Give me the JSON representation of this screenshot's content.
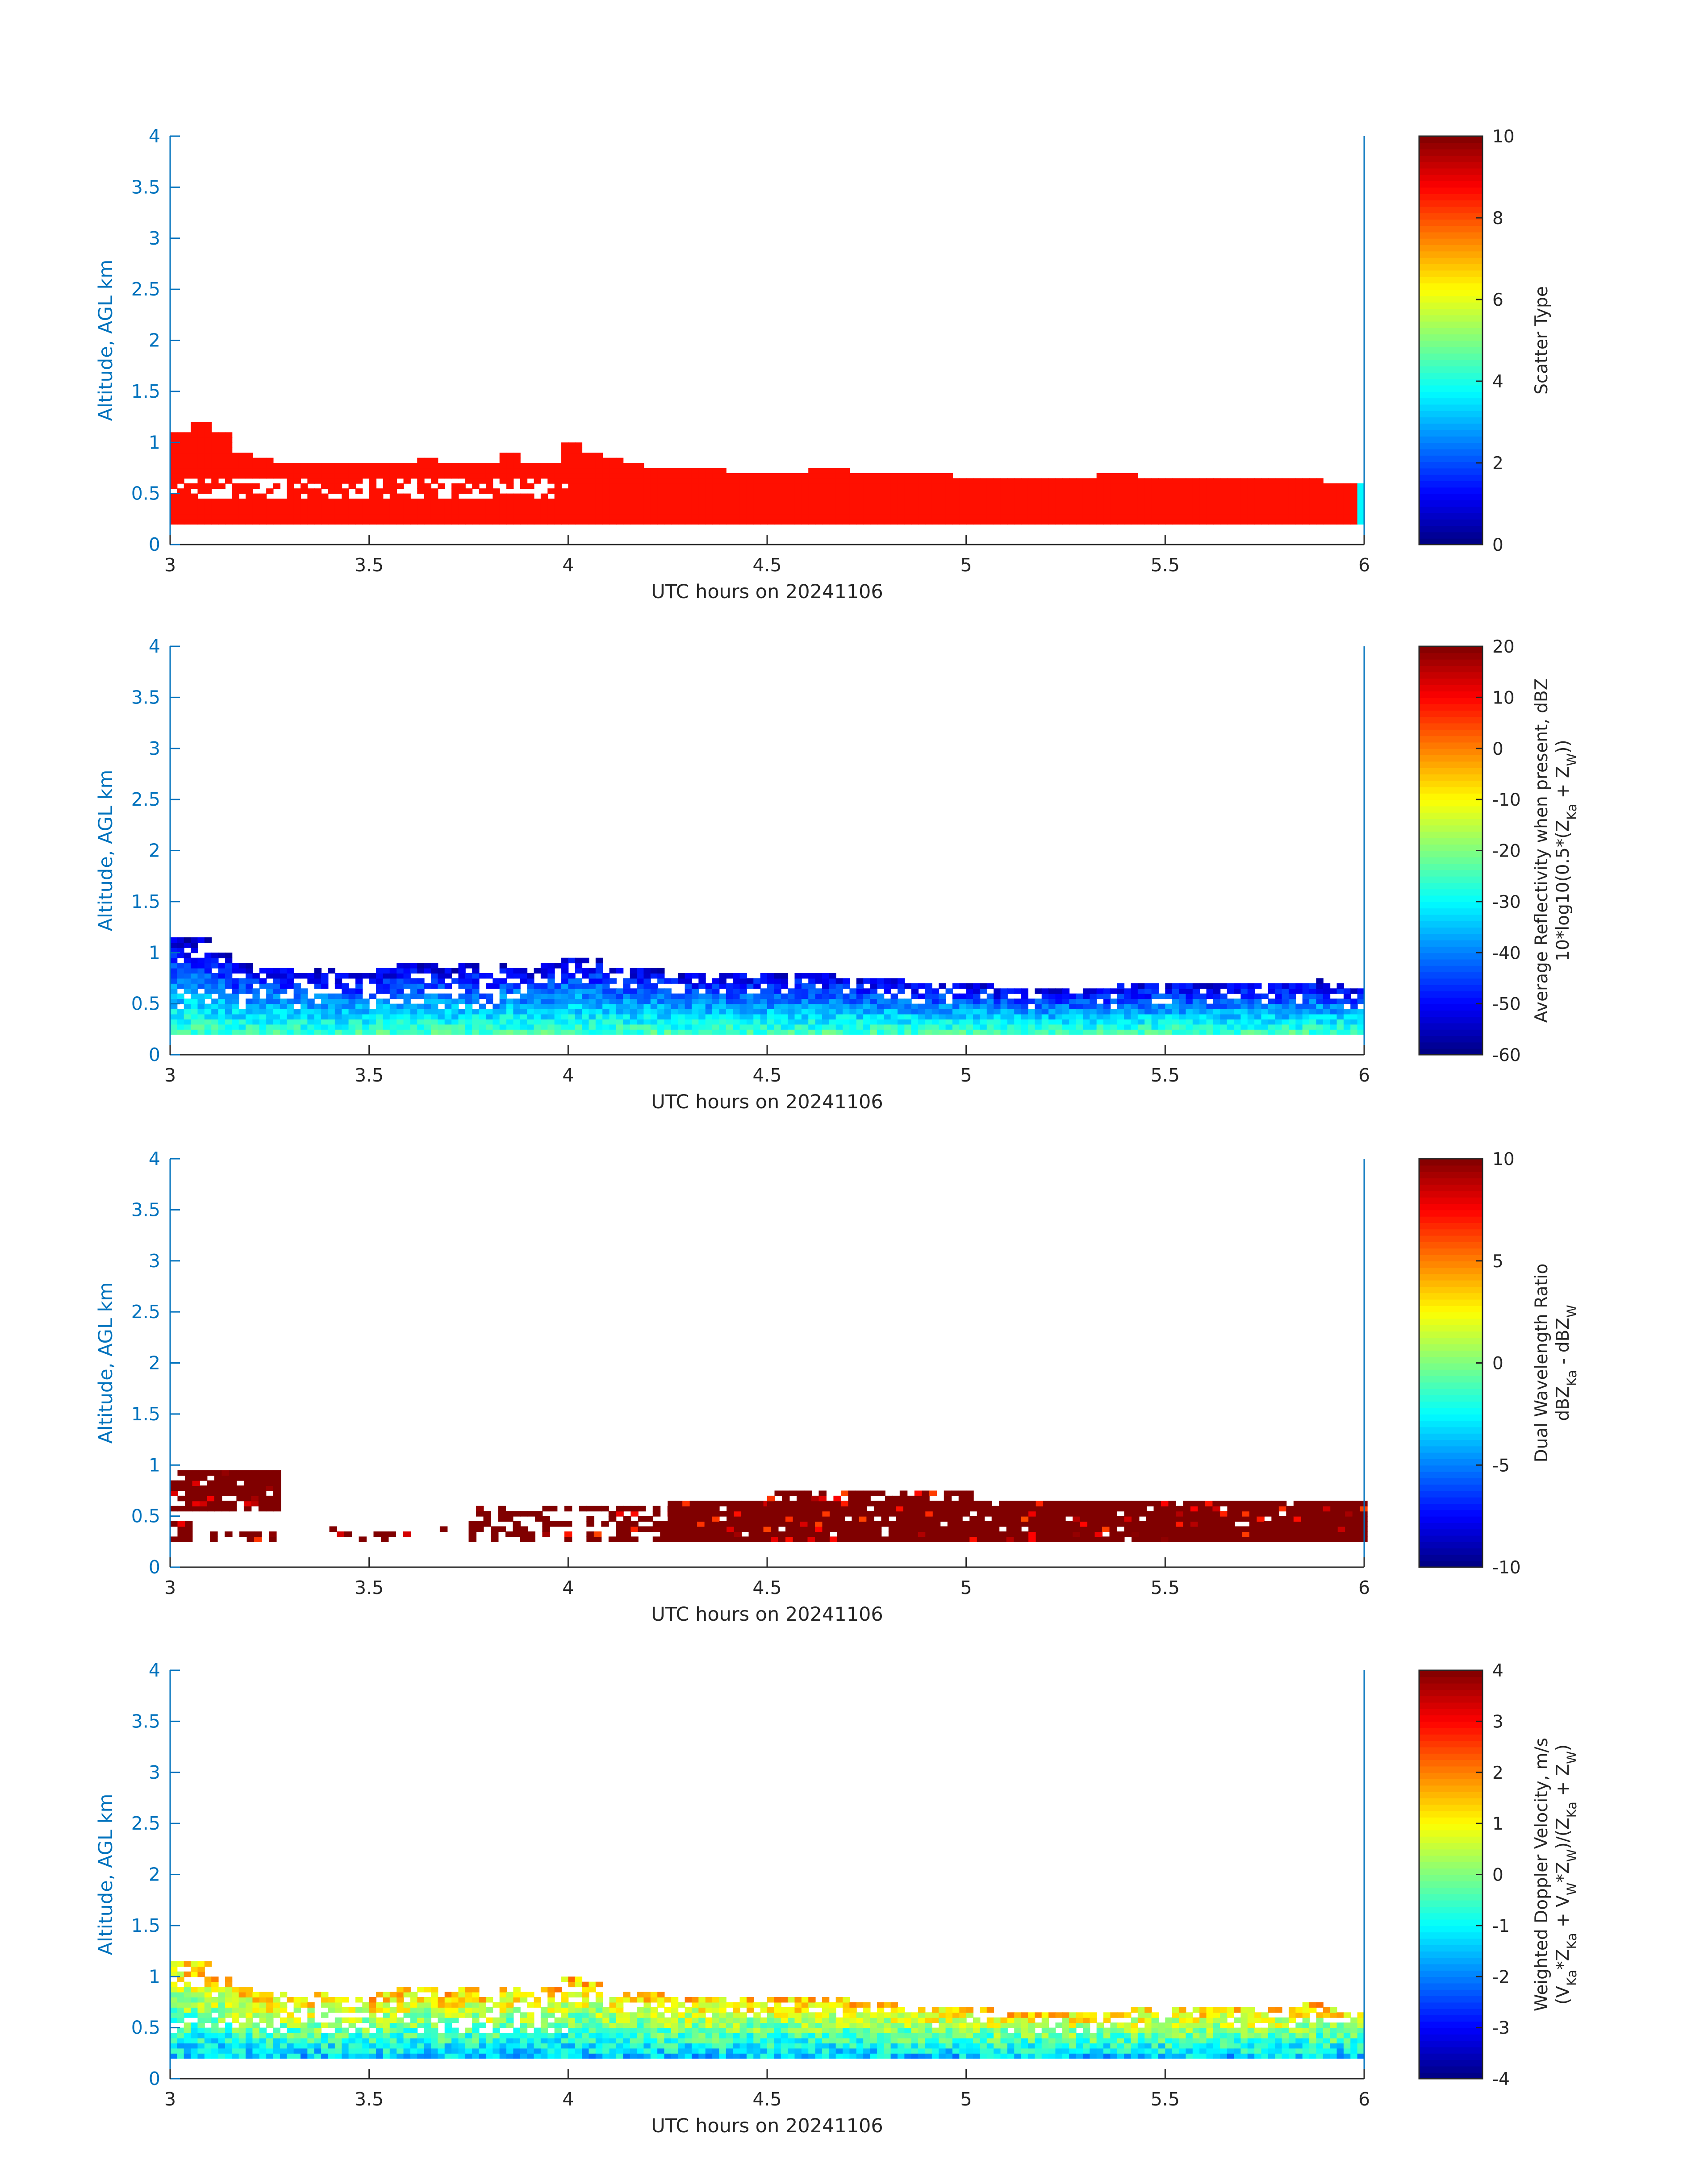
{
  "chart_data": [
    {
      "type": "heatmap",
      "xlabel": "UTC hours on 20241106",
      "ylabel": "Altitude, AGL km",
      "xlim": [
        3,
        6
      ],
      "ylim": [
        0,
        4
      ],
      "xticks": [
        "3",
        "3.5",
        "4",
        "4.5",
        "5",
        "5.5",
        "6"
      ],
      "yticks": [
        "0",
        "0.5",
        "1",
        "1.5",
        "2",
        "2.5",
        "3",
        "3.5",
        "4"
      ],
      "colorbar": {
        "label_lines": [
          "Scatter Type"
        ],
        "range": [
          0,
          10
        ],
        "ticks": [
          "0",
          "2",
          "4",
          "6",
          "8",
          "10"
        ]
      },
      "field": {
        "scheme": "scatter",
        "base_km": 0.2,
        "top_km": [
          1.1,
          1.2,
          1.1,
          0.9,
          0.85,
          0.8,
          0.8,
          0.8,
          0.8,
          0.8,
          0.8,
          0.8,
          0.85,
          0.8,
          0.8,
          0.8,
          0.9,
          0.8,
          0.8,
          1.0,
          0.9,
          0.85,
          0.8,
          0.75,
          0.75,
          0.75,
          0.75,
          0.7,
          0.7,
          0.7,
          0.7,
          0.75,
          0.75,
          0.7,
          0.7,
          0.7,
          0.7,
          0.7,
          0.65,
          0.65,
          0.65,
          0.65,
          0.65,
          0.65,
          0.65,
          0.7,
          0.7,
          0.65,
          0.65,
          0.65,
          0.65,
          0.65,
          0.65,
          0.65,
          0.65,
          0.65,
          0.6,
          0.6
        ],
        "main_value": 8.6,
        "edge_value": 3.7
      }
    },
    {
      "type": "heatmap",
      "xlabel": "UTC hours on 20241106",
      "ylabel": "Altitude, AGL km",
      "xlim": [
        3,
        6
      ],
      "ylim": [
        0,
        4
      ],
      "xticks": [
        "3",
        "3.5",
        "4",
        "4.5",
        "5",
        "5.5",
        "6"
      ],
      "yticks": [
        "0",
        "0.5",
        "1",
        "1.5",
        "2",
        "2.5",
        "3",
        "3.5",
        "4"
      ],
      "colorbar": {
        "label_lines": [
          "Average Reflectivity when present, dBZ",
          "10*log10(0.5*(Z",
          "Ka",
          " + Z",
          "W",
          "))"
        ],
        "range": [
          -60,
          20
        ],
        "ticks": [
          "-60",
          "-50",
          "-40",
          "-30",
          "-20",
          "-10",
          "0",
          "10",
          "20"
        ]
      },
      "field": {
        "scheme": "reflectivity",
        "base_km": 0.2,
        "top_km": [
          1.15,
          1.15,
          1.0,
          0.9,
          0.85,
          0.85,
          0.8,
          0.85,
          0.8,
          0.8,
          0.85,
          0.9,
          0.9,
          0.85,
          0.9,
          0.8,
          0.9,
          0.85,
          0.9,
          1.0,
          0.95,
          0.85,
          0.85,
          0.85,
          0.8,
          0.8,
          0.8,
          0.8,
          0.8,
          0.8,
          0.8,
          0.8,
          0.8,
          0.75,
          0.75,
          0.75,
          0.7,
          0.7,
          0.7,
          0.7,
          0.65,
          0.65,
          0.65,
          0.65,
          0.65,
          0.65,
          0.7,
          0.7,
          0.7,
          0.7,
          0.7,
          0.7,
          0.7,
          0.7,
          0.7,
          0.75,
          0.7,
          0.65
        ],
        "value_range_dbz": [
          -55,
          -25
        ]
      }
    },
    {
      "type": "heatmap",
      "xlabel": "UTC hours on 20241106",
      "ylabel": "Altitude, AGL km",
      "xlim": [
        3,
        6
      ],
      "ylim": [
        0,
        4
      ],
      "xticks": [
        "3",
        "3.5",
        "4",
        "4.5",
        "5",
        "5.5",
        "6"
      ],
      "yticks": [
        "0",
        "0.5",
        "1",
        "1.5",
        "2",
        "2.5",
        "3",
        "3.5",
        "4"
      ],
      "colorbar": {
        "label_lines": [
          "Dual Wavelength Ratio",
          "dBZ",
          "Ka",
          " - dBZ",
          "W"
        ],
        "range": [
          -10,
          10
        ],
        "ticks": [
          "-10",
          "-5",
          "0",
          "5",
          "10"
        ]
      },
      "field": {
        "scheme": "dwr",
        "segments": [
          {
            "x0": 3.0,
            "x1": 3.27,
            "y0": 0.55,
            "y1": 0.95,
            "density": 0.85
          },
          {
            "x0": 3.0,
            "x1": 3.05,
            "y0": 0.25,
            "y1": 0.45,
            "density": 0.8
          },
          {
            "x0": 3.1,
            "x1": 3.25,
            "y0": 0.25,
            "y1": 0.35,
            "density": 0.6
          },
          {
            "x0": 3.4,
            "x1": 3.7,
            "y0": 0.25,
            "y1": 0.4,
            "density": 0.15
          },
          {
            "x0": 3.75,
            "x1": 4.25,
            "y0": 0.25,
            "y1": 0.6,
            "density": 0.45
          },
          {
            "x0": 4.25,
            "x1": 6.0,
            "y0": 0.25,
            "y1": 0.65,
            "density": 0.95
          },
          {
            "x0": 4.5,
            "x1": 5.0,
            "y0": 0.6,
            "y1": 0.75,
            "density": 0.7
          }
        ],
        "value_range": [
          6,
          10
        ]
      }
    },
    {
      "type": "heatmap",
      "xlabel": "UTC hours on 20241106",
      "ylabel": "Altitude, AGL km",
      "xlim": [
        3,
        6
      ],
      "ylim": [
        0,
        4
      ],
      "xticks": [
        "3",
        "3.5",
        "4",
        "4.5",
        "5",
        "5.5",
        "6"
      ],
      "yticks": [
        "0",
        "0.5",
        "1",
        "1.5",
        "2",
        "2.5",
        "3",
        "3.5",
        "4"
      ],
      "colorbar": {
        "label_lines": [
          "Weighted Doppler Velocity, m/s",
          "(V",
          "Ka",
          "*Z",
          "Ka",
          " + V",
          "W",
          "*Z",
          "W",
          ")/(Z",
          "Ka",
          " + Z",
          "W",
          ")"
        ],
        "range": [
          -4,
          4
        ],
        "ticks": [
          "-4",
          "-3",
          "-2",
          "-1",
          "0",
          "1",
          "2",
          "3",
          "4"
        ]
      },
      "field": {
        "scheme": "velocity",
        "base_km": 0.2,
        "top_km": [
          1.15,
          1.15,
          1.0,
          0.9,
          0.85,
          0.85,
          0.8,
          0.85,
          0.8,
          0.8,
          0.85,
          0.9,
          0.9,
          0.85,
          0.9,
          0.8,
          0.9,
          0.85,
          0.9,
          1.0,
          0.95,
          0.85,
          0.85,
          0.85,
          0.8,
          0.8,
          0.8,
          0.8,
          0.8,
          0.8,
          0.8,
          0.8,
          0.8,
          0.75,
          0.75,
          0.75,
          0.7,
          0.7,
          0.7,
          0.7,
          0.65,
          0.65,
          0.65,
          0.65,
          0.65,
          0.65,
          0.7,
          0.7,
          0.7,
          0.7,
          0.7,
          0.7,
          0.7,
          0.7,
          0.7,
          0.75,
          0.7,
          0.65
        ],
        "value_range_ms": [
          -2.0,
          1.0
        ]
      }
    }
  ]
}
